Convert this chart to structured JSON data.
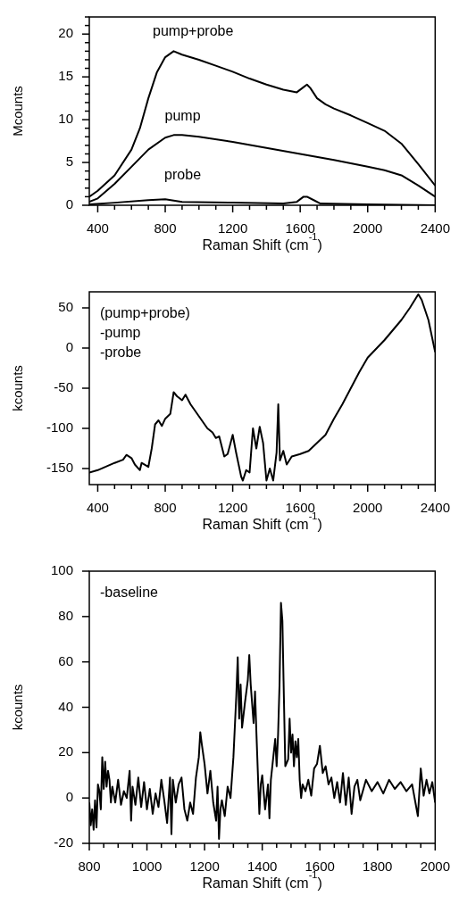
{
  "chart_data": [
    {
      "type": "line",
      "xlabel": "Raman Shift (cm$^{-1}$)",
      "ylabel": "Mcounts",
      "xlim": [
        350,
        2400
      ],
      "ylim": [
        0,
        22
      ],
      "xticks": [
        400,
        {
          "value": 500,
          "label": null
        },
        {
          "value": 600,
          "label": null
        },
        {
          "value": 700,
          "label": null
        },
        800,
        {
          "value": 900,
          "label": null
        },
        {
          "value": 1000,
          "label": null
        },
        {
          "value": 1100,
          "label": null
        },
        1200,
        {
          "value": 1300,
          "label": null
        },
        {
          "value": 1400,
          "label": null
        },
        {
          "value": 1500,
          "label": null
        },
        1600,
        {
          "value": 1700,
          "label": null
        },
        {
          "value": 1800,
          "label": null
        },
        {
          "value": 1900,
          "label": null
        },
        2000,
        {
          "value": 2100,
          "label": null
        },
        {
          "value": 2200,
          "label": null
        },
        {
          "value": 2300,
          "label": null
        },
        2400
      ],
      "yticks": [
        0,
        {
          "value": 1,
          "label": null
        },
        {
          "value": 2,
          "label": null
        },
        {
          "value": 3,
          "label": null
        },
        {
          "value": 4,
          "label": null
        },
        5,
        {
          "value": 6,
          "label": null
        },
        {
          "value": 7,
          "label": null
        },
        {
          "value": 8,
          "label": null
        },
        {
          "value": 9,
          "label": null
        },
        10,
        {
          "value": 11,
          "label": null
        },
        {
          "value": 12,
          "label": null
        },
        {
          "value": 13,
          "label": null
        },
        {
          "value": 14,
          "label": null
        },
        15,
        {
          "value": 16,
          "label": null
        },
        {
          "value": 17,
          "label": null
        },
        {
          "value": 18,
          "label": null
        },
        {
          "value": 19,
          "label": null
        },
        20,
        {
          "value": 21,
          "label": null
        },
        {
          "value": 22,
          "label": null
        }
      ],
      "grid": false,
      "legend": false,
      "marker": "none",
      "line_style": "solid",
      "series": [
        {
          "name": "pump+probe",
          "color": "#000000",
          "x": [
            350,
            400,
            500,
            600,
            650,
            700,
            750,
            800,
            850,
            900,
            1000,
            1100,
            1200,
            1300,
            1400,
            1500,
            1580,
            1620,
            1640,
            1660,
            1700,
            1750,
            1800,
            1900,
            2000,
            2100,
            2200,
            2300,
            2400
          ],
          "values": [
            1.0,
            1.7,
            3.5,
            6.5,
            9,
            12.5,
            15.5,
            17.3,
            18,
            17.6,
            17,
            16.3,
            15.6,
            14.8,
            14.1,
            13.5,
            13.2,
            13.8,
            14.1,
            13.7,
            12.5,
            11.8,
            11.3,
            10.5,
            9.6,
            8.7,
            7.2,
            4.8,
            2.3
          ]
        },
        {
          "name": "pump",
          "color": "#000000",
          "x": [
            350,
            400,
            500,
            600,
            700,
            800,
            850,
            900,
            1000,
            1200,
            1400,
            1600,
            1800,
            2000,
            2100,
            2200,
            2300,
            2400
          ],
          "values": [
            0.4,
            0.8,
            2.5,
            4.5,
            6.5,
            7.9,
            8.2,
            8.2,
            8,
            7.4,
            6.7,
            6,
            5.3,
            4.5,
            4.1,
            3.5,
            2.3,
            1.0
          ]
        },
        {
          "name": "probe",
          "color": "#000000",
          "x": [
            350,
            500,
            700,
            800,
            900,
            1200,
            1500,
            1580,
            1620,
            1640,
            1680,
            1720,
            2000,
            2400
          ],
          "values": [
            0.1,
            0.3,
            0.6,
            0.7,
            0.4,
            0.3,
            0.2,
            0.4,
            1.0,
            1.0,
            0.6,
            0.2,
            0.1,
            0.0
          ]
        }
      ]
    },
    {
      "type": "line",
      "xlabel": "Raman Shift (cm$^{-1}$)",
      "ylabel": "kcounts",
      "xlim": [
        350,
        2400
      ],
      "ylim": [
        -170,
        70
      ],
      "xticks": [
        400,
        {
          "value": 500,
          "label": null
        },
        {
          "value": 600,
          "label": null
        },
        {
          "value": 700,
          "label": null
        },
        800,
        {
          "value": 900,
          "label": null
        },
        {
          "value": 1000,
          "label": null
        },
        {
          "value": 1100,
          "label": null
        },
        1200,
        {
          "value": 1300,
          "label": null
        },
        {
          "value": 1400,
          "label": null
        },
        {
          "value": 1500,
          "label": null
        },
        1600,
        {
          "value": 1700,
          "label": null
        },
        {
          "value": 1800,
          "label": null
        },
        {
          "value": 1900,
          "label": null
        },
        2000,
        {
          "value": 2100,
          "label": null
        },
        {
          "value": 2200,
          "label": null
        },
        {
          "value": 2300,
          "label": null
        },
        2400
      ],
      "yticks": [
        -150,
        -100,
        -50,
        0,
        50
      ],
      "grid": false,
      "legend": false,
      "marker": "none",
      "line_style": "solid",
      "annotations": [
        "(pump+probe)",
        "-pump",
        "-probe"
      ],
      "series": [
        {
          "color": "#000000",
          "x": [
            350,
            400,
            500,
            550,
            570,
            600,
            620,
            650,
            660,
            700,
            720,
            740,
            760,
            780,
            800,
            830,
            850,
            870,
            900,
            920,
            950,
            1000,
            1050,
            1080,
            1100,
            1120,
            1150,
            1170,
            1200,
            1220,
            1250,
            1260,
            1280,
            1300,
            1320,
            1340,
            1360,
            1380,
            1400,
            1420,
            1440,
            1460,
            1470,
            1480,
            1500,
            1520,
            1550,
            1600,
            1650,
            1700,
            1750,
            1800,
            1850,
            1900,
            1950,
            2000,
            2100,
            2200,
            2250,
            2300,
            2320,
            2360,
            2400
          ],
          "values": [
            -155,
            -152,
            -143,
            -139,
            -133,
            -137,
            -145,
            -152,
            -143,
            -148,
            -125,
            -95,
            -90,
            -97,
            -88,
            -82,
            -55,
            -60,
            -65,
            -58,
            -70,
            -85,
            -100,
            -105,
            -112,
            -110,
            -135,
            -132,
            -108,
            -130,
            -160,
            -165,
            -152,
            -155,
            -100,
            -125,
            -98,
            -118,
            -165,
            -150,
            -165,
            -130,
            -70,
            -140,
            -128,
            -145,
            -135,
            -132,
            -128,
            -118,
            -108,
            -88,
            -70,
            -50,
            -30,
            -12,
            10,
            35,
            50,
            67,
            60,
            35,
            -5
          ]
        }
      ]
    },
    {
      "type": "line",
      "xlabel": "Raman Shift (cm$^{-1}$)",
      "ylabel": "kcounts",
      "xlim": [
        800,
        2000
      ],
      "ylim": [
        -20,
        100
      ],
      "xticks": [
        800,
        {
          "value": 850,
          "label": null
        },
        {
          "value": 900,
          "label": null
        },
        {
          "value": 950,
          "label": null
        },
        1000,
        {
          "value": 1050,
          "label": null
        },
        {
          "value": 1100,
          "label": null
        },
        {
          "value": 1150,
          "label": null
        },
        1200,
        {
          "value": 1250,
          "label": null
        },
        {
          "value": 1300,
          "label": null
        },
        {
          "value": 1350,
          "label": null
        },
        1400,
        {
          "value": 1450,
          "label": null
        },
        {
          "value": 1500,
          "label": null
        },
        {
          "value": 1550,
          "label": null
        },
        1600,
        {
          "value": 1650,
          "label": null
        },
        {
          "value": 1700,
          "label": null
        },
        {
          "value": 1750,
          "label": null
        },
        1800,
        {
          "value": 1850,
          "label": null
        },
        {
          "value": 1900,
          "label": null
        },
        {
          "value": 1950,
          "label": null
        },
        2000
      ],
      "yticks": [
        -20,
        0,
        20,
        40,
        60,
        80,
        100
      ],
      "grid": false,
      "legend": false,
      "marker": "none",
      "line_style": "solid",
      "annotations": [
        "-baseline"
      ],
      "series": [
        {
          "color": "#000000",
          "x": [
            800,
            805,
            810,
            815,
            820,
            825,
            830,
            835,
            840,
            845,
            850,
            855,
            860,
            865,
            870,
            875,
            880,
            890,
            900,
            910,
            920,
            930,
            940,
            945,
            950,
            960,
            970,
            980,
            990,
            1000,
            1010,
            1020,
            1030,
            1040,
            1050,
            1060,
            1070,
            1080,
            1085,
            1090,
            1100,
            1110,
            1120,
            1130,
            1140,
            1150,
            1160,
            1170,
            1180,
            1185,
            1190,
            1200,
            1210,
            1220,
            1230,
            1240,
            1245,
            1250,
            1255,
            1260,
            1270,
            1280,
            1290,
            1300,
            1310,
            1315,
            1320,
            1325,
            1330,
            1340,
            1350,
            1355,
            1360,
            1370,
            1375,
            1380,
            1390,
            1395,
            1400,
            1410,
            1420,
            1425,
            1430,
            1440,
            1445,
            1450,
            1455,
            1460,
            1465,
            1470,
            1475,
            1480,
            1490,
            1495,
            1500,
            1505,
            1510,
            1515,
            1520,
            1525,
            1530,
            1535,
            1540,
            1550,
            1560,
            1570,
            1580,
            1590,
            1600,
            1610,
            1620,
            1630,
            1640,
            1650,
            1660,
            1670,
            1680,
            1690,
            1700,
            1710,
            1720,
            1730,
            1740,
            1760,
            1780,
            1800,
            1820,
            1840,
            1860,
            1880,
            1900,
            1920,
            1940,
            1950,
            1960,
            1970,
            1980,
            1990,
            2000
          ],
          "values": [
            -2,
            -12,
            -5,
            -14,
            -1,
            -13,
            6,
            3,
            -5,
            18,
            4,
            16,
            5,
            12,
            8,
            -2,
            5,
            -2,
            8,
            -3,
            3,
            0,
            12,
            -10,
            5,
            -3,
            9,
            -4,
            7,
            -5,
            4,
            -7,
            2,
            -4,
            8,
            -1,
            -11,
            9,
            -16,
            8,
            -2,
            6,
            9,
            -5,
            -10,
            -2,
            -7,
            9,
            18,
            29,
            24,
            15,
            2,
            12,
            -2,
            -10,
            5,
            -18,
            -5,
            -1,
            -8,
            5,
            0,
            18,
            45,
            62,
            35,
            50,
            31,
            42,
            52,
            63,
            50,
            33,
            47,
            28,
            -7,
            6,
            10,
            -5,
            6,
            -9,
            8,
            20,
            26,
            14,
            28,
            50,
            86,
            78,
            45,
            14,
            17,
            35,
            20,
            28,
            14,
            25,
            18,
            26,
            8,
            0,
            6,
            3,
            8,
            1,
            13,
            15,
            23,
            11,
            14,
            6,
            9,
            0,
            7,
            -2,
            11,
            -3,
            9,
            -7,
            5,
            8,
            -1,
            8,
            3,
            7,
            2,
            8,
            4,
            7,
            3,
            6,
            -8,
            13,
            1,
            8,
            2,
            7,
            -2
          ]
        }
      ]
    }
  ]
}
